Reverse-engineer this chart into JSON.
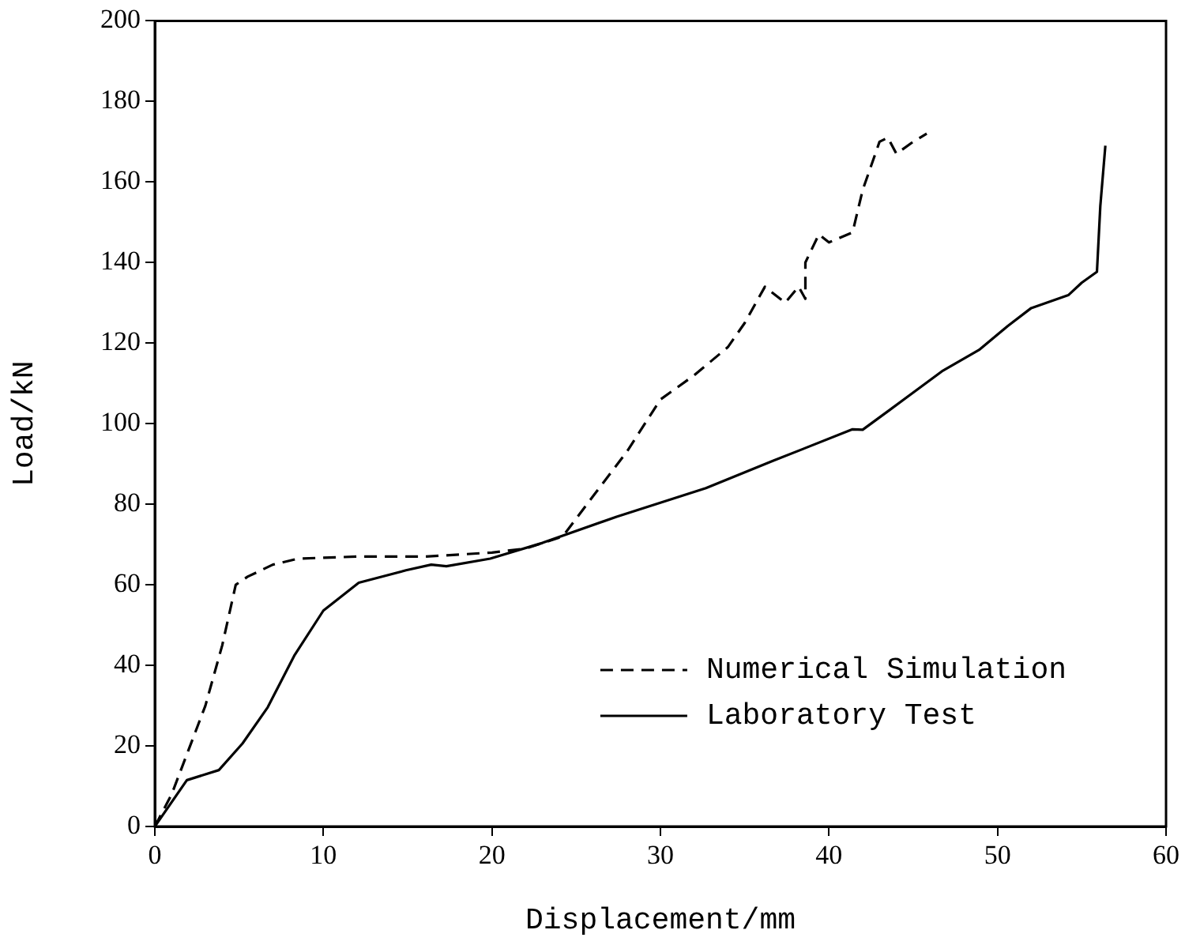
{
  "chart_data": {
    "type": "line",
    "xlabel": "Displacement/mm",
    "ylabel": "Load/kN",
    "xlim": [
      0,
      60
    ],
    "xticks": [
      0,
      10,
      20,
      30,
      40,
      50,
      60
    ],
    "ylim": [
      0,
      200
    ],
    "yticks": [
      0,
      20,
      40,
      60,
      80,
      100,
      120,
      140,
      160,
      180,
      200
    ],
    "grid": false,
    "legend": "bottom right",
    "marker": "none",
    "series": [
      {
        "name": "Numerical Simulation",
        "color": "#000000",
        "line_style": "dashed",
        "x": [
          0,
          1,
          2,
          3,
          4,
          4.8,
          5.5,
          7,
          8.5,
          12,
          16,
          20,
          22,
          24.2,
          26,
          28,
          30,
          32,
          34,
          35,
          36.2,
          37.4,
          38.2,
          38.6,
          38.6,
          39.4,
          40,
          41.4,
          42,
          43,
          43.5,
          44,
          45,
          45.8
        ],
        "values": [
          0,
          8,
          19,
          30,
          45,
          60,
          62,
          65,
          66.5,
          67,
          67,
          68,
          69,
          72,
          82,
          93,
          106,
          112,
          119,
          125,
          134,
          130,
          134,
          131,
          140,
          147,
          145,
          147.5,
          158,
          170,
          171,
          167,
          170,
          172
        ]
      },
      {
        "name": "Laboratory Test",
        "color": "#000000",
        "line_style": "solid",
        "x": [
          0,
          1.9,
          3.8,
          5.2,
          6.7,
          8.3,
          10,
          12.1,
          14.9,
          16.4,
          17.3,
          19.9,
          23,
          27.4,
          32.7,
          36.7,
          41.4,
          42,
          43.6,
          46.7,
          48.9,
          50.6,
          52,
          54.2,
          55,
          55.9,
          56.1,
          56.4
        ],
        "values": [
          0,
          11.5,
          14,
          20.6,
          29.6,
          42.6,
          53.6,
          60.5,
          63.6,
          65,
          64.6,
          66.5,
          70.4,
          76.9,
          84,
          90.8,
          98.6,
          98.5,
          103.4,
          113,
          118.3,
          124.2,
          128.7,
          131.9,
          135,
          137.7,
          154,
          169
        ]
      }
    ]
  }
}
